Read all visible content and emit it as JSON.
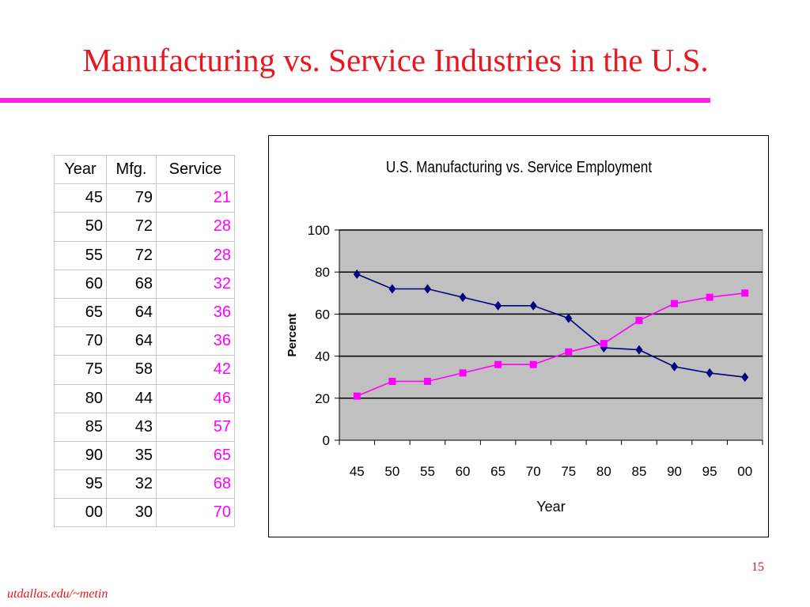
{
  "slide": {
    "title": "Manufacturing vs. Service Industries in the U.S.",
    "page_number": "15",
    "footer": "utdallas.edu/~metin"
  },
  "table": {
    "headers": [
      "Year",
      "Mfg.",
      "Service"
    ],
    "rows": [
      [
        "45",
        "79",
        "21"
      ],
      [
        "50",
        "72",
        "28"
      ],
      [
        "55",
        "72",
        "28"
      ],
      [
        "60",
        "68",
        "32"
      ],
      [
        "65",
        "64",
        "36"
      ],
      [
        "70",
        "64",
        "36"
      ],
      [
        "75",
        "58",
        "42"
      ],
      [
        "80",
        "44",
        "46"
      ],
      [
        "85",
        "43",
        "57"
      ],
      [
        "90",
        "35",
        "65"
      ],
      [
        "95",
        "32",
        "68"
      ],
      [
        "00",
        "30",
        "70"
      ]
    ]
  },
  "chart_data": {
    "type": "line",
    "title": "U.S. Manufacturing vs. Service Employment",
    "xlabel": "Year",
    "ylabel": "Percent",
    "categories": [
      "45",
      "50",
      "55",
      "60",
      "65",
      "70",
      "75",
      "80",
      "85",
      "90",
      "95",
      "00"
    ],
    "series": [
      {
        "values": [
          79,
          72,
          72,
          68,
          64,
          64,
          58,
          44,
          43,
          35,
          32,
          30
        ],
        "color": "#000080",
        "marker": "diamond"
      },
      {
        "values": [
          21,
          28,
          28,
          32,
          36,
          36,
          42,
          46,
          57,
          65,
          68,
          70
        ],
        "color": "#ff00ff",
        "marker": "square"
      }
    ],
    "ylim": [
      0,
      100
    ],
    "yticks": [
      0,
      20,
      40,
      60,
      80,
      100
    ],
    "grid": true,
    "legend": "none",
    "plot_background": "#c0c0c0"
  },
  "colors": {
    "title": "#e8171f",
    "rule": "#ff22e6",
    "service_text": "#ff00ff"
  }
}
